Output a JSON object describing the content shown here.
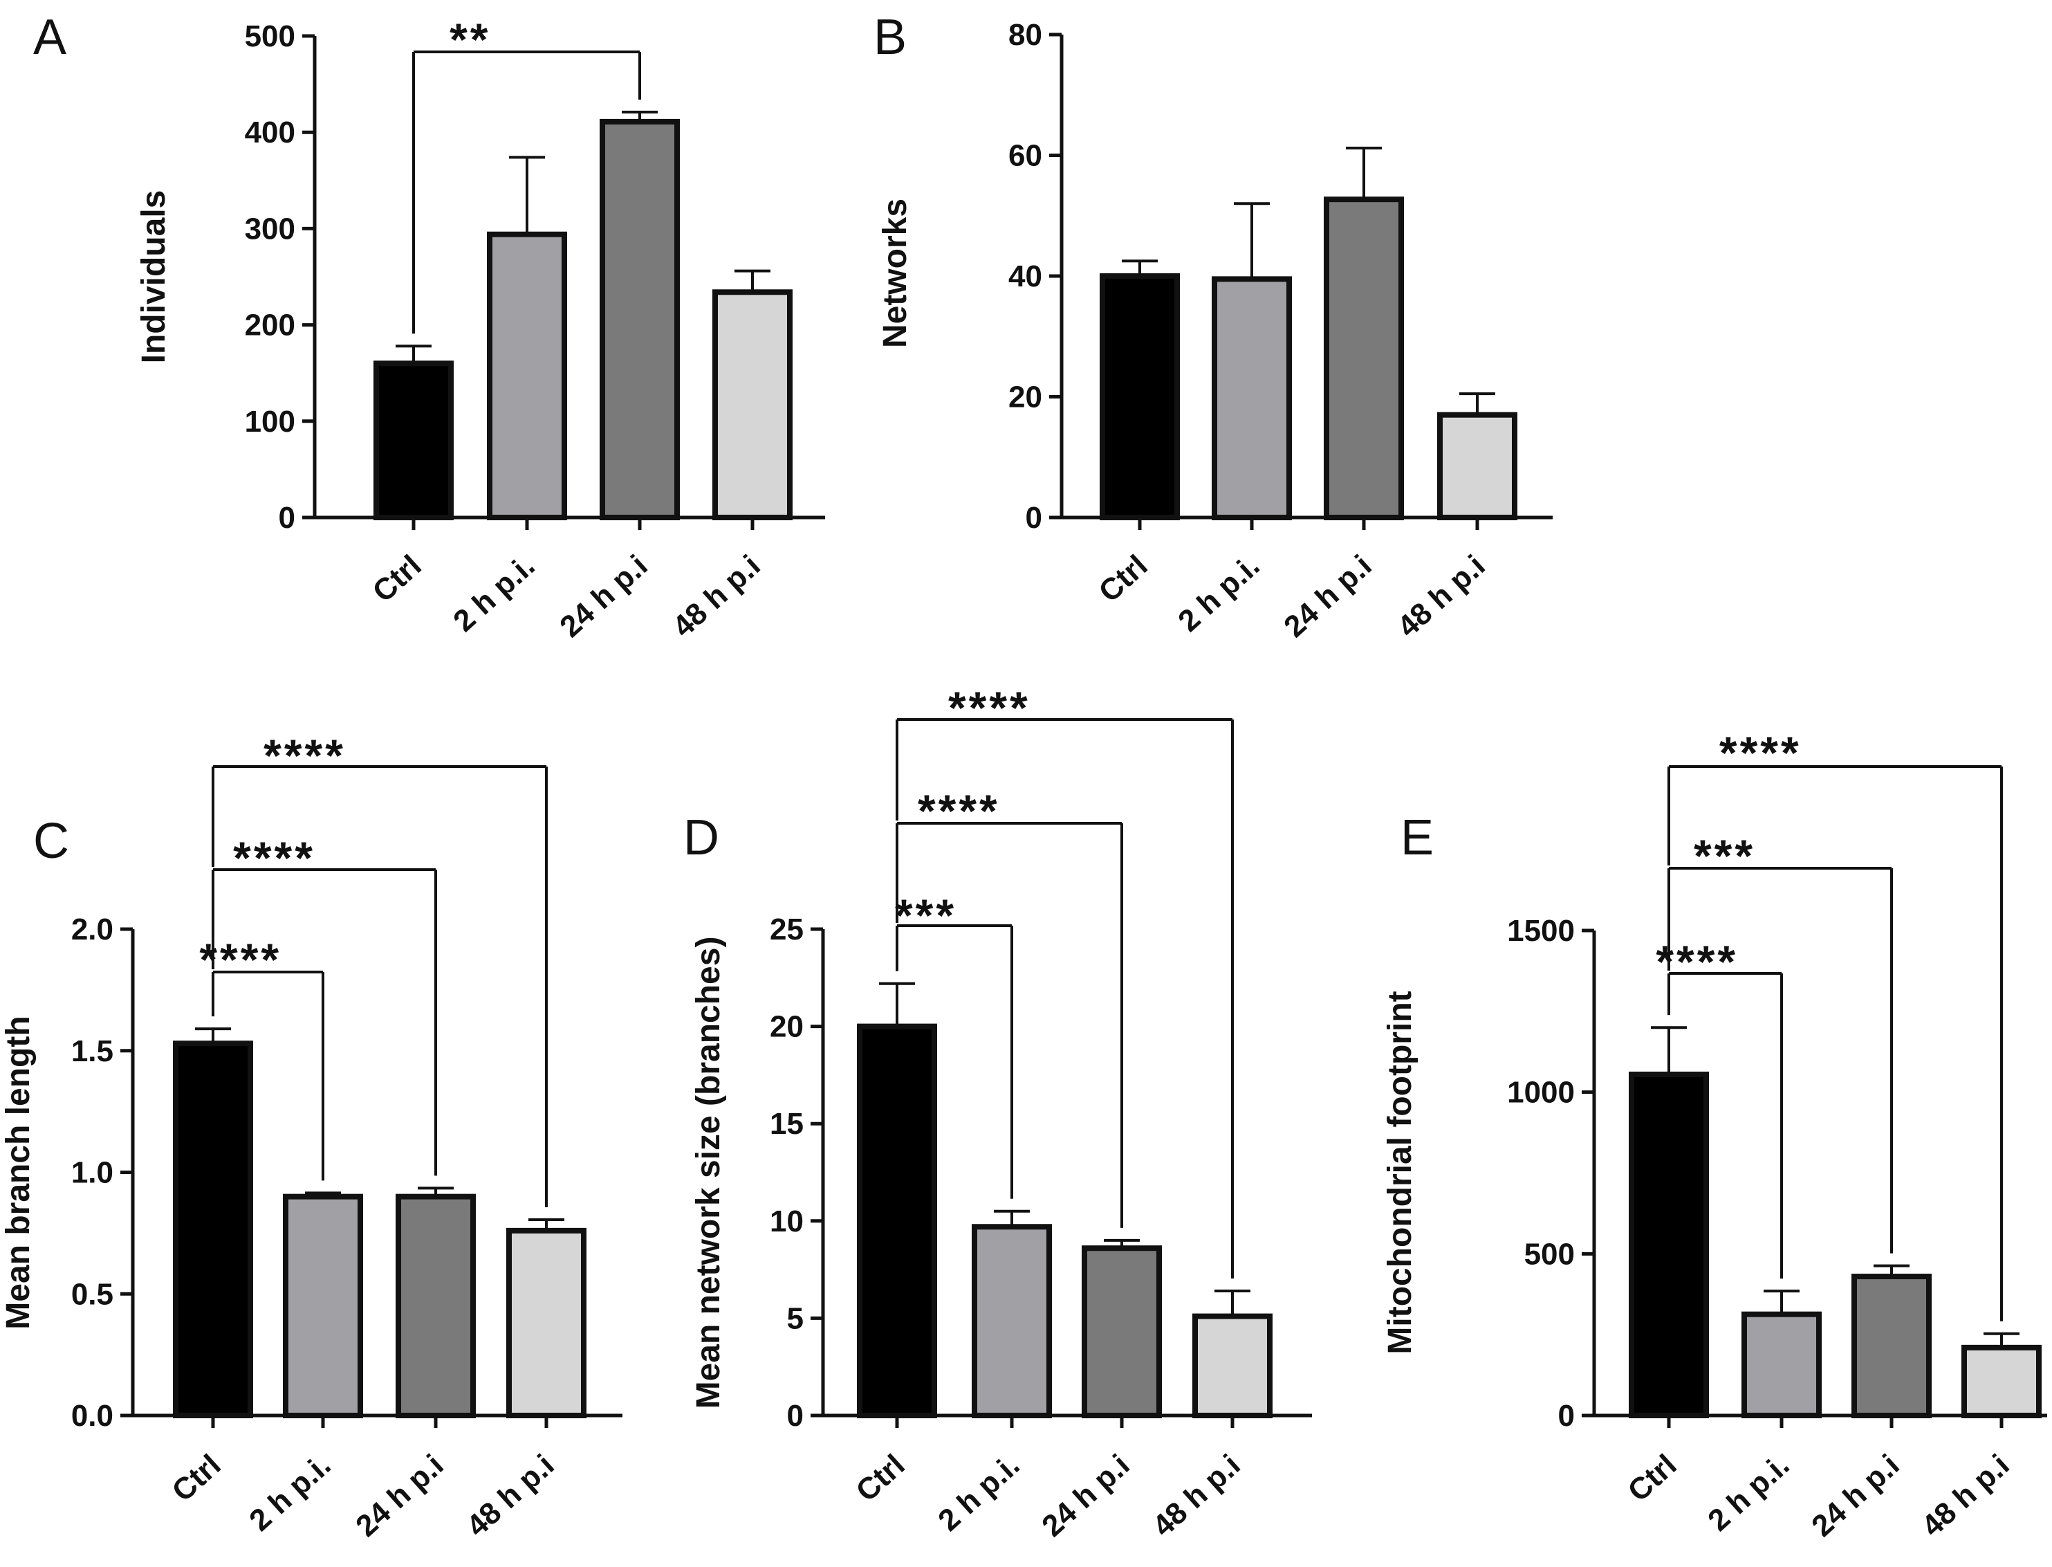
{
  "chart_data": [
    {
      "panel": "A",
      "type": "bar",
      "title": "",
      "xlabel": "",
      "ylabel": "Individuals",
      "categories": [
        "Ctrl",
        "2 h p.i.",
        "24 h p.i",
        "48 h p.i"
      ],
      "values": [
        160,
        294,
        411,
        234
      ],
      "errors": [
        18,
        80,
        10,
        22
      ],
      "colors": [
        "#000000",
        "#a0a0a5",
        "#7a7a7a",
        "#d6d6d6"
      ],
      "ylim": [
        0,
        500
      ],
      "yticks": [
        0,
        100,
        200,
        300,
        400,
        500
      ],
      "grid": false,
      "comparisons": [
        {
          "from": 0,
          "to": 2,
          "label": "**"
        }
      ]
    },
    {
      "panel": "B",
      "type": "bar",
      "title": "",
      "xlabel": "",
      "ylabel": "Networks",
      "categories": [
        "Ctrl",
        "2 h p.i.",
        "24 h p.i",
        "48 h p.i"
      ],
      "values": [
        40,
        39.5,
        52.7,
        17
      ],
      "errors": [
        2.5,
        12.5,
        8.5,
        3.5
      ],
      "colors": [
        "#000000",
        "#a0a0a5",
        "#7a7a7a",
        "#d6d6d6"
      ],
      "ylim": [
        0,
        80
      ],
      "yticks": [
        0,
        20,
        40,
        60,
        80
      ],
      "grid": false,
      "comparisons": []
    },
    {
      "panel": "C",
      "type": "bar",
      "title": "",
      "xlabel": "",
      "ylabel": "Mean branch length",
      "categories": [
        "Ctrl",
        "2 h p.i.",
        "24 h p.i",
        "48 h p.i"
      ],
      "values": [
        1.53,
        0.9,
        0.9,
        0.76
      ],
      "errors": [
        0.06,
        0.015,
        0.035,
        0.045
      ],
      "colors": [
        "#000000",
        "#a0a0a5",
        "#7a7a7a",
        "#d6d6d6"
      ],
      "ylim": [
        0,
        2.0
      ],
      "yticks": [
        "0.0",
        "0.5",
        "1.0",
        "1.5",
        "2.0"
      ],
      "grid": false,
      "comparisons": [
        {
          "from": 0,
          "to": 1,
          "label": "****"
        },
        {
          "from": 0,
          "to": 2,
          "label": "****"
        },
        {
          "from": 0,
          "to": 3,
          "label": "****"
        }
      ]
    },
    {
      "panel": "D",
      "type": "bar",
      "title": "",
      "xlabel": "",
      "ylabel": "Mean network size (branches)",
      "categories": [
        "Ctrl",
        "2 h p.i.",
        "24 h p.i",
        "48 h p.i"
      ],
      "values": [
        20,
        9.7,
        8.6,
        5.1
      ],
      "errors": [
        2.2,
        0.8,
        0.4,
        1.3
      ],
      "colors": [
        "#000000",
        "#a0a0a5",
        "#7a7a7a",
        "#d6d6d6"
      ],
      "ylim": [
        0,
        25
      ],
      "yticks": [
        0,
        5,
        10,
        15,
        20,
        25
      ],
      "grid": false,
      "comparisons": [
        {
          "from": 0,
          "to": 1,
          "label": "***"
        },
        {
          "from": 0,
          "to": 2,
          "label": "****"
        },
        {
          "from": 0,
          "to": 3,
          "label": "****"
        }
      ]
    },
    {
      "panel": "E",
      "type": "bar",
      "title": "",
      "xlabel": "",
      "ylabel": "Mitochondrial footprint",
      "categories": [
        "Ctrl",
        "2 h p.i.",
        "24 h p.i",
        "48 h p.i"
      ],
      "values": [
        1055,
        313,
        430,
        210
      ],
      "errors": [
        145,
        72,
        33,
        43
      ],
      "colors": [
        "#000000",
        "#a0a0a5",
        "#7a7a7a",
        "#d6d6d6"
      ],
      "ylim": [
        0,
        1500
      ],
      "yticks": [
        0,
        500,
        1000,
        1500
      ],
      "grid": false,
      "comparisons": [
        {
          "from": 0,
          "to": 1,
          "label": "****"
        },
        {
          "from": 0,
          "to": 2,
          "label": "***"
        },
        {
          "from": 0,
          "to": 3,
          "label": "****"
        }
      ]
    }
  ]
}
